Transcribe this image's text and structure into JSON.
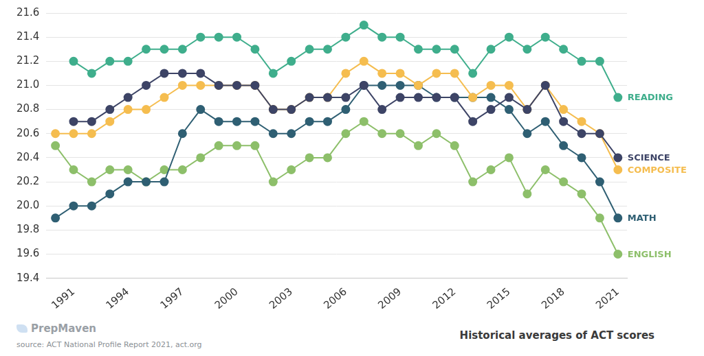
{
  "chart_data": {
    "type": "line",
    "title": "Historical averages of ACT scores",
    "annotations": [
      "PrepMaven",
      "source: ACT National Profile Report 2021, act.org"
    ],
    "x": [
      1990,
      1991,
      1992,
      1993,
      1994,
      1995,
      1996,
      1997,
      1998,
      1999,
      2000,
      2001,
      2002,
      2003,
      2004,
      2005,
      2006,
      2007,
      2008,
      2009,
      2010,
      2011,
      2012,
      2013,
      2014,
      2015,
      2016,
      2017,
      2018,
      2019,
      2020,
      2021
    ],
    "series": [
      {
        "name": "READING",
        "color": "#3fae8c",
        "values": [
          null,
          21.2,
          21.1,
          21.2,
          21.2,
          21.3,
          21.3,
          21.3,
          21.4,
          21.4,
          21.4,
          21.3,
          21.1,
          21.2,
          21.3,
          21.3,
          21.4,
          21.5,
          21.4,
          21.4,
          21.3,
          21.3,
          21.3,
          21.1,
          21.3,
          21.4,
          21.3,
          21.4,
          21.3,
          21.2,
          21.2,
          20.9
        ]
      },
      {
        "name": "SCIENCE",
        "color": "#3d4466",
        "values": [
          null,
          20.7,
          20.7,
          20.8,
          20.9,
          21.0,
          21.1,
          21.1,
          21.1,
          21.0,
          21.0,
          21.0,
          20.8,
          20.8,
          20.9,
          20.9,
          20.9,
          21.0,
          20.8,
          20.9,
          20.9,
          20.9,
          20.9,
          20.7,
          20.8,
          20.9,
          20.8,
          21.0,
          20.7,
          20.6,
          20.6,
          20.4
        ]
      },
      {
        "name": "COMPOSITE",
        "color": "#f5bd4f",
        "values": [
          20.6,
          20.6,
          20.6,
          20.7,
          20.8,
          20.8,
          20.9,
          21.0,
          21.0,
          21.0,
          21.0,
          21.0,
          20.8,
          20.8,
          20.9,
          20.9,
          21.1,
          21.2,
          21.1,
          21.1,
          21.0,
          21.1,
          21.1,
          20.9,
          21.0,
          21.0,
          20.8,
          21.0,
          20.8,
          20.7,
          20.6,
          20.3
        ]
      },
      {
        "name": "MATH",
        "color": "#2f5f73",
        "values": [
          19.9,
          20.0,
          20.0,
          20.1,
          20.2,
          20.2,
          20.2,
          20.6,
          20.8,
          20.7,
          20.7,
          20.7,
          20.6,
          20.6,
          20.7,
          20.7,
          20.8,
          21.0,
          21.0,
          21.0,
          21.0,
          20.9,
          20.9,
          20.9,
          20.9,
          20.8,
          20.6,
          20.7,
          20.5,
          20.4,
          20.2,
          19.9
        ]
      },
      {
        "name": "ENGLISH",
        "color": "#8dbf6a",
        "values": [
          20.5,
          20.3,
          20.2,
          20.3,
          20.3,
          20.2,
          20.3,
          20.3,
          20.4,
          20.5,
          20.5,
          20.5,
          20.2,
          20.3,
          20.4,
          20.4,
          20.6,
          20.7,
          20.6,
          20.6,
          20.5,
          20.6,
          20.5,
          20.2,
          20.3,
          20.4,
          20.1,
          20.3,
          20.2,
          20.1,
          19.9,
          19.6
        ]
      }
    ],
    "xlim": [
      1989.5,
      2021.5
    ],
    "xticks": [
      1991,
      1994,
      1997,
      2000,
      2003,
      2006,
      2009,
      2012,
      2015,
      2018,
      2021
    ],
    "ylim": [
      19.4,
      21.6
    ],
    "yticks": [
      19.4,
      19.6,
      19.8,
      {
        "value": 20.0,
        "label": "20.0"
      },
      20.2,
      20.4,
      20.6,
      20.8,
      {
        "value": 21.0,
        "label": "21.0"
      },
      21.2,
      21.4,
      21.6
    ],
    "grid": true,
    "marker": "circle"
  }
}
